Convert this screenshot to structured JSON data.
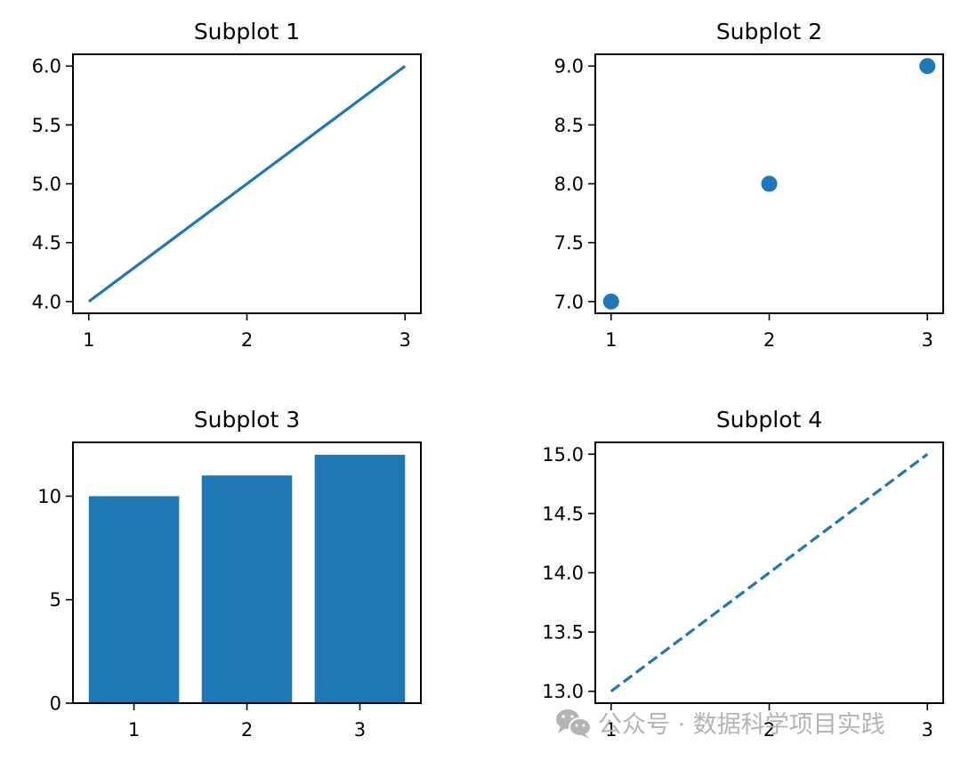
{
  "figure": {
    "background": "#ffffff",
    "series_color": "#1f77b4",
    "watermark": {
      "icon": "wechat-icon",
      "text": "公众号 · 数据科学项目实践"
    }
  },
  "chart_data": [
    {
      "id": "subplot-1",
      "type": "line",
      "title": "Subplot 1",
      "linestyle": "solid",
      "x": [
        1,
        2,
        3
      ],
      "y": [
        4,
        5,
        6
      ],
      "xlabel": "",
      "ylabel": "",
      "xticks": [
        "1",
        "2",
        "3"
      ],
      "yticks": [
        "4.0",
        "4.5",
        "5.0",
        "5.5",
        "6.0"
      ],
      "xlim": [
        0.9,
        3.1
      ],
      "ylim": [
        3.9,
        6.1
      ],
      "grid": false,
      "legend": null
    },
    {
      "id": "subplot-2",
      "type": "scatter",
      "title": "Subplot 2",
      "x": [
        1,
        2,
        3
      ],
      "y": [
        7,
        8,
        9
      ],
      "xlabel": "",
      "ylabel": "",
      "xticks": [
        "1",
        "2",
        "3"
      ],
      "yticks": [
        "7.0",
        "7.5",
        "8.0",
        "8.5",
        "9.0"
      ],
      "xlim": [
        0.9,
        3.1
      ],
      "ylim": [
        6.9,
        9.1
      ],
      "grid": false,
      "legend": null
    },
    {
      "id": "subplot-3",
      "type": "bar",
      "title": "Subplot 3",
      "categories": [
        "1",
        "2",
        "3"
      ],
      "values": [
        10,
        11,
        12
      ],
      "xlabel": "",
      "ylabel": "",
      "xticks": [
        "1",
        "2",
        "3"
      ],
      "yticks": [
        "0",
        "5",
        "10"
      ],
      "ylim": [
        0,
        12.6
      ],
      "grid": false,
      "legend": null
    },
    {
      "id": "subplot-4",
      "type": "line",
      "title": "Subplot 4",
      "linestyle": "dashed",
      "x": [
        1,
        2,
        3
      ],
      "y": [
        13,
        14,
        15
      ],
      "xlabel": "",
      "ylabel": "",
      "xticks": [
        "1",
        "2",
        "3"
      ],
      "yticks": [
        "13.0",
        "13.5",
        "14.0",
        "14.5",
        "15.0"
      ],
      "xlim": [
        0.9,
        3.1
      ],
      "ylim": [
        12.9,
        15.1
      ],
      "grid": false,
      "legend": null
    }
  ]
}
